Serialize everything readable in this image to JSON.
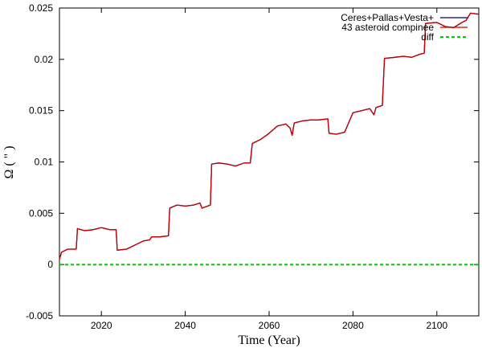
{
  "chart_data": {
    "type": "line",
    "xlabel": "Time (Year)",
    "ylabel": "Ω ( \" )",
    "xlim": [
      2010,
      2110
    ],
    "ylim": [
      -0.005,
      0.025
    ],
    "xticks": [
      2020,
      2040,
      2060,
      2080,
      2100
    ],
    "xtick_labels": [
      "2020",
      "2040",
      "2060",
      "2080",
      "2100"
    ],
    "yticks": [
      -0.005,
      0,
      0.005,
      0.01,
      0.015,
      0.02,
      0.025
    ],
    "ytick_labels": [
      "-0.005",
      "0",
      "0.005",
      "0.01",
      "0.015",
      "0.02",
      "0.025"
    ],
    "grid": false,
    "legend_position": "top-right",
    "series": [
      {
        "name": "Ceres+Pallas+Vesta+",
        "color": "#000066",
        "dash": "solid",
        "x": [
          2010,
          2010.5,
          2012,
          2014,
          2014.3,
          2016,
          2018,
          2020,
          2022,
          2023.5,
          2023.8,
          2026,
          2028,
          2030,
          2031.5,
          2032,
          2034,
          2036,
          2036.3,
          2038,
          2040,
          2042,
          2043.5,
          2044,
          2046,
          2046.3,
          2048,
          2050,
          2052,
          2054,
          2055.5,
          2056,
          2058,
          2060,
          2062,
          2064,
          2065,
          2065.5,
          2066,
          2068,
          2070,
          2072,
          2074,
          2074.3,
          2076,
          2078,
          2080,
          2082,
          2084,
          2085,
          2085.5,
          2087,
          2087.5,
          2090,
          2092,
          2094,
          2096,
          2097,
          2097.3,
          2100,
          2102,
          2104,
          2106,
          2107,
          2108,
          2110
        ],
        "y": [
          0.0005,
          0.0012,
          0.0015,
          0.0015,
          0.0035,
          0.0033,
          0.0034,
          0.0036,
          0.0034,
          0.0034,
          0.0014,
          0.0015,
          0.0019,
          0.0023,
          0.0024,
          0.0027,
          0.0027,
          0.0028,
          0.0055,
          0.0058,
          0.0057,
          0.0058,
          0.006,
          0.0055,
          0.0058,
          0.0098,
          0.0099,
          0.0098,
          0.0096,
          0.0099,
          0.0099,
          0.0118,
          0.0122,
          0.0128,
          0.0135,
          0.0137,
          0.0133,
          0.0126,
          0.0138,
          0.014,
          0.0141,
          0.0141,
          0.0142,
          0.0128,
          0.0127,
          0.0129,
          0.0148,
          0.015,
          0.0152,
          0.0146,
          0.0153,
          0.0155,
          0.0201,
          0.0202,
          0.0203,
          0.0202,
          0.0205,
          0.0206,
          0.0235,
          0.0236,
          0.0232,
          0.0231,
          0.0236,
          0.0238,
          0.0245,
          0.0244
        ]
      },
      {
        "name": "43 asteroid compinee",
        "color": "#cc0000",
        "dash": "solid",
        "x": [
          2010,
          2010.5,
          2012,
          2014,
          2014.3,
          2016,
          2018,
          2020,
          2022,
          2023.5,
          2023.8,
          2026,
          2028,
          2030,
          2031.5,
          2032,
          2034,
          2036,
          2036.3,
          2038,
          2040,
          2042,
          2043.5,
          2044,
          2046,
          2046.3,
          2048,
          2050,
          2052,
          2054,
          2055.5,
          2056,
          2058,
          2060,
          2062,
          2064,
          2065,
          2065.5,
          2066,
          2068,
          2070,
          2072,
          2074,
          2074.3,
          2076,
          2078,
          2080,
          2082,
          2084,
          2085,
          2085.5,
          2087,
          2087.5,
          2090,
          2092,
          2094,
          2096,
          2097,
          2097.3,
          2100,
          2102,
          2104,
          2106,
          2107,
          2108,
          2110
        ],
        "y": [
          0.0005,
          0.0012,
          0.0015,
          0.0015,
          0.0035,
          0.0033,
          0.0034,
          0.0036,
          0.0034,
          0.0034,
          0.0014,
          0.0015,
          0.0019,
          0.0023,
          0.0024,
          0.0027,
          0.0027,
          0.0028,
          0.0055,
          0.0058,
          0.0057,
          0.0058,
          0.006,
          0.0055,
          0.0058,
          0.0098,
          0.0099,
          0.0098,
          0.0096,
          0.0099,
          0.0099,
          0.0118,
          0.0122,
          0.0128,
          0.0135,
          0.0137,
          0.0133,
          0.0126,
          0.0138,
          0.014,
          0.0141,
          0.0141,
          0.0142,
          0.0128,
          0.0127,
          0.0129,
          0.0148,
          0.015,
          0.0152,
          0.0146,
          0.0153,
          0.0155,
          0.0201,
          0.0202,
          0.0203,
          0.0202,
          0.0205,
          0.0206,
          0.0235,
          0.0236,
          0.0232,
          0.0231,
          0.0236,
          0.0238,
          0.0245,
          0.0244
        ]
      },
      {
        "name": "diff",
        "color": "#00cc00",
        "dash": "dashed",
        "x": [
          2010,
          2110
        ],
        "y": [
          0,
          0
        ]
      }
    ]
  }
}
